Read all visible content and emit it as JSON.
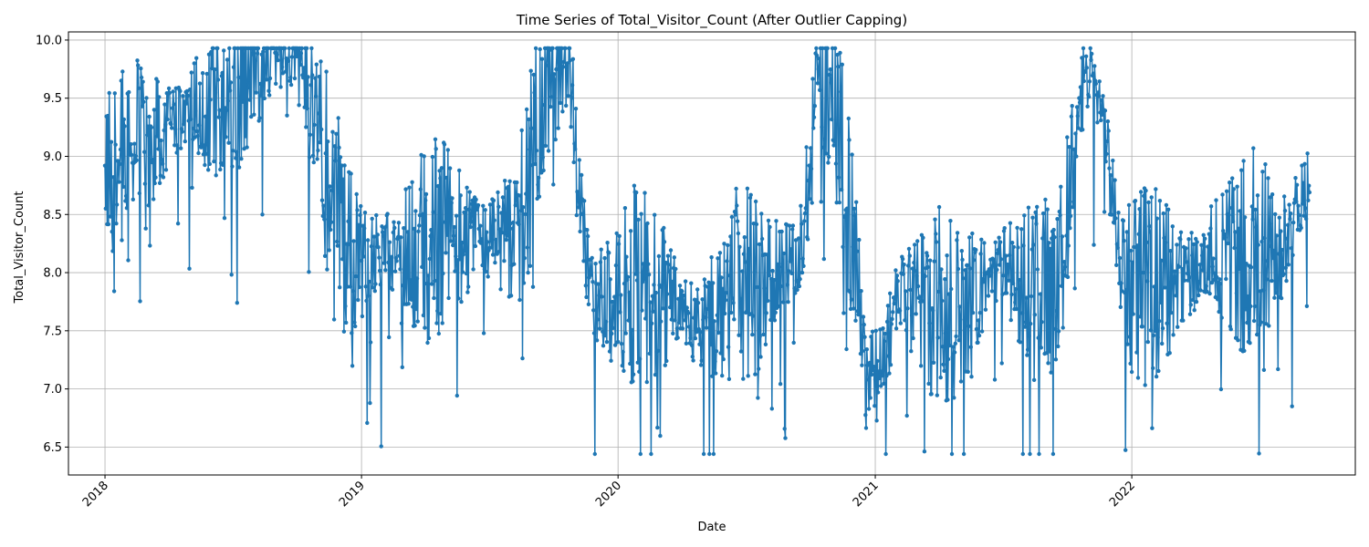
{
  "chart_data": {
    "type": "line",
    "title": "Time Series of Total_Visitor_Count (After Outlier Capping)",
    "xlabel": "Date",
    "ylabel": "Total_Visitor_Count",
    "x_range": [
      "2017-11-10",
      "2022-11-15"
    ],
    "ylim": [
      6.26,
      10.07
    ],
    "x_ticks": [
      "2018",
      "2019",
      "2020",
      "2021",
      "2022"
    ],
    "y_ticks": [
      "6.5",
      "7.0",
      "7.5",
      "8.0",
      "8.5",
      "9.0",
      "9.5",
      "10.0"
    ],
    "grid": true,
    "series": [
      {
        "color": "#1f77b4",
        "marker": "circle",
        "x": [
          "2018-01-01",
          "2018-09-19",
          "2018-12-25",
          "2019-03-06",
          "2019-05-16",
          "2019-07-26",
          "2019-10-15",
          "2019-11-28",
          "2020-02-08",
          "2020-04-20",
          "2020-06-30",
          "2020-09-10",
          "2020-10-20",
          "2020-12-31",
          "2021-02-09",
          "2021-04-21",
          "2021-07-01",
          "2021-09-10",
          "2021-10-30",
          "2022-01-01",
          "2022-03-02",
          "2022-05-12",
          "2022-07-22",
          "2022-09-11"
        ],
        "y": [
          8.92,
          9.93,
          8.16,
          8.2,
          8.3,
          8.3,
          9.93,
          7.78,
          7.9,
          7.58,
          7.86,
          8.1,
          9.8,
          7.04,
          7.8,
          7.7,
          8.0,
          7.76,
          9.73,
          7.82,
          7.92,
          8.2,
          8.2,
          8.69
        ],
        "y_min": 6.44,
        "y_max": 9.93,
        "mean": 8.18
      }
    ]
  }
}
